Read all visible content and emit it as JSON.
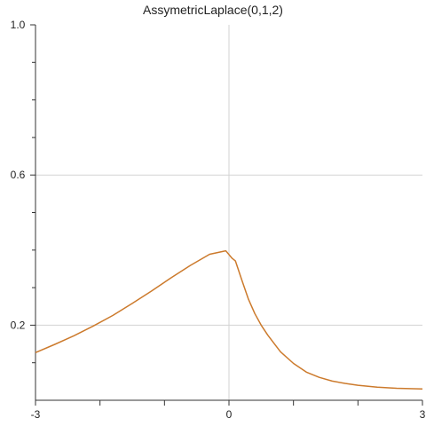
{
  "chart_data": {
    "type": "line",
    "title": "AssymetricLaplace(0,1,2)",
    "xlabel": "",
    "ylabel": "",
    "xlim": [
      -3,
      3
    ],
    "ylim": [
      0,
      1.0
    ],
    "x_ticks": [
      -3,
      -2,
      -1,
      0,
      1,
      2,
      3
    ],
    "x_tick_labels": [
      "-3",
      "",
      "",
      "0",
      "",
      "",
      "3"
    ],
    "y_ticks": [
      0.1,
      0.2,
      0.3,
      0.4,
      0.5,
      0.6,
      0.7,
      0.8,
      0.9,
      1.0
    ],
    "y_tick_labels": [
      "",
      "0.2",
      "",
      "",
      "",
      "0.6",
      "",
      "",
      "",
      "1.0"
    ],
    "grid": {
      "x": [
        0
      ],
      "y": [
        0.2,
        0.6
      ]
    },
    "colors": {
      "line": "#cc7a2c",
      "grid": "#d3d3d3",
      "axis": "#333333"
    },
    "series": [
      {
        "x": [
          -3.0,
          -2.7,
          -2.4,
          -2.1,
          -1.8,
          -1.5,
          -1.2,
          -0.9,
          -0.6,
          -0.3,
          -0.05,
          0.05,
          0.1,
          0.2,
          0.3,
          0.4,
          0.5,
          0.6,
          0.7,
          0.8,
          1.0,
          1.2,
          1.4,
          1.6,
          1.8,
          2.0,
          2.3,
          2.6,
          3.0
        ],
        "y": [
          0.127,
          0.149,
          0.172,
          0.198,
          0.226,
          0.258,
          0.291,
          0.326,
          0.359,
          0.389,
          0.398,
          0.378,
          0.371,
          0.32,
          0.27,
          0.231,
          0.2,
          0.174,
          0.151,
          0.129,
          0.098,
          0.075,
          0.061,
          0.051,
          0.045,
          0.04,
          0.035,
          0.032,
          0.03
        ]
      }
    ]
  }
}
